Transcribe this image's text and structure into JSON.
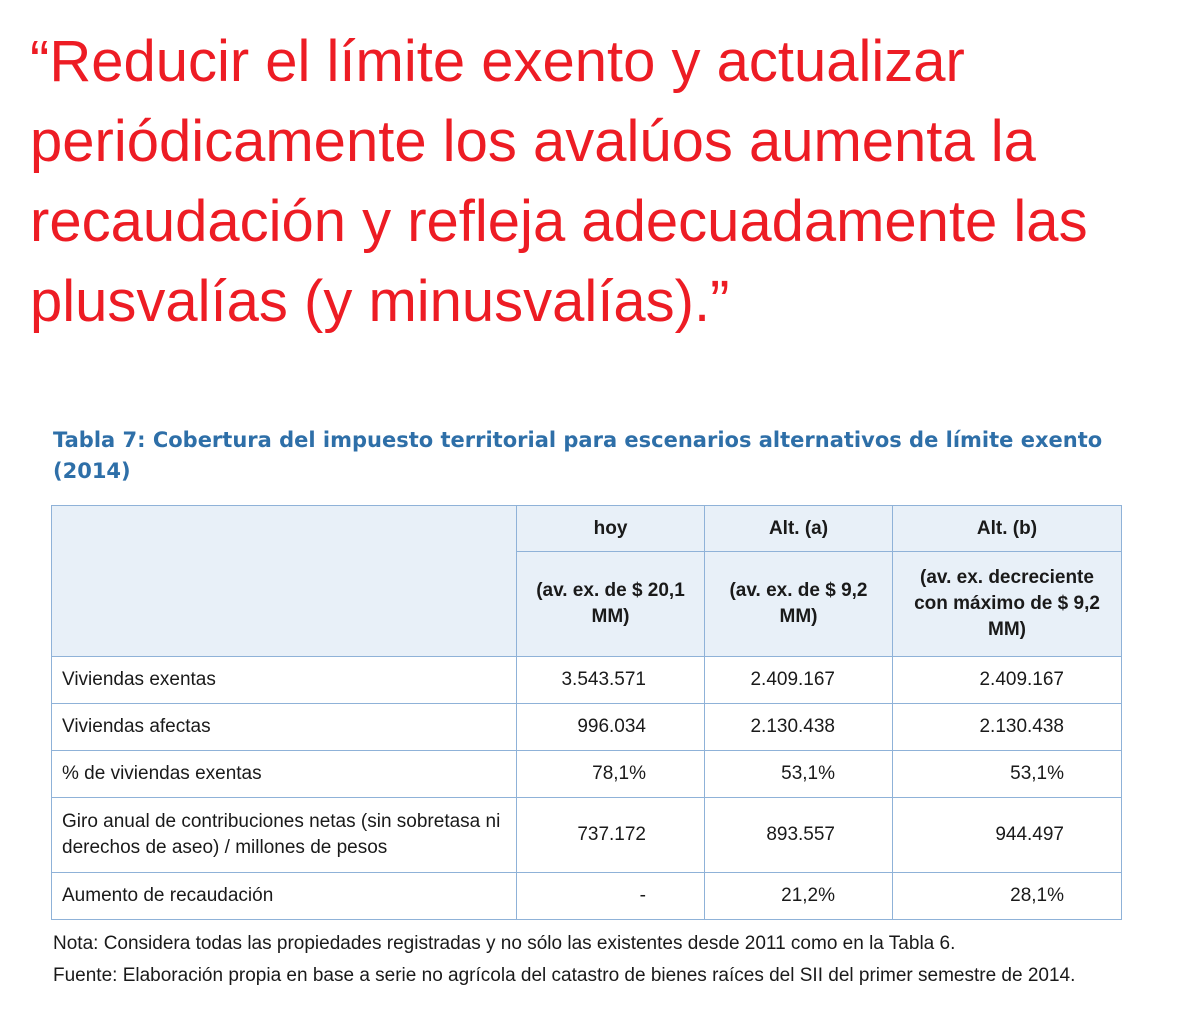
{
  "quote": "“Reducir el límite exento y actualizar\nperiódicamente los avalúos aumenta la\nrecaudación y refleja adecuadamente las\nplusvalías (y minusvalías).”",
  "table": {
    "title": "Tabla 7: Cobertura del impuesto territorial para escenarios alternativos de límite exento (2014)",
    "columns": [
      {
        "name": "hoy",
        "desc": "(av. ex. de $ 20,1 MM)"
      },
      {
        "name": "Alt. (a)",
        "desc": "(av. ex. de $ 9,2 MM)"
      },
      {
        "name": "Alt. (b)",
        "desc": "(av. ex. decreciente con máximo de $ 9,2 MM)"
      }
    ],
    "rows": [
      {
        "label": "Viviendas exentas",
        "values": [
          "3.543.571",
          "2.409.167",
          "2.409.167"
        ]
      },
      {
        "label": "Viviendas afectas",
        "values": [
          "996.034",
          "2.130.438",
          "2.130.438"
        ]
      },
      {
        "label": "% de viviendas exentas",
        "values": [
          "78,1%",
          "53,1%",
          "53,1%"
        ]
      },
      {
        "label": "Giro anual de contribuciones netas (sin sobretasa ni derechos de aseo) / millones de pesos",
        "values": [
          "737.172",
          "893.557",
          "944.497"
        ]
      },
      {
        "label": "Aumento de recaudación",
        "values": [
          "-",
          "21,2%",
          "28,1%"
        ]
      }
    ],
    "note": "Nota: Considera todas las propiedades registradas y no sólo las existentes desde 2011 como en la Tabla 6.",
    "source": "Fuente: Elaboración propia en base a serie no agrícola del catastro de bienes raíces del SII del primer semestre de 2014."
  },
  "colors": {
    "quote": "#ed1c24",
    "title": "#2e6fa8",
    "table_border": "#8fb2d8",
    "header_bg": "#e8f0f8"
  }
}
